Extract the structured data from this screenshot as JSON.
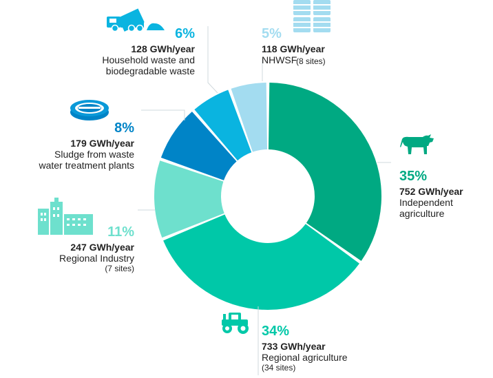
{
  "chart_data": {
    "type": "donut",
    "title": "",
    "unit": "GWh/year",
    "slices": [
      {
        "key": "independent",
        "percent": "35%",
        "value": 752,
        "value_label": "752 GWh/year",
        "label_lines": [
          "Independent",
          "agriculture"
        ],
        "sub": "",
        "color": "#00a982",
        "icon": "cow-icon"
      },
      {
        "key": "regional_agri",
        "percent": "34%",
        "value": 733,
        "value_label": "733 GWh/year",
        "label_lines": [
          "Regional agriculture"
        ],
        "sub": "(34 sites)",
        "color": "#00c8a8",
        "icon": "tractor-icon"
      },
      {
        "key": "industry",
        "percent": "11%",
        "value": 247,
        "value_label": "247 GWh/year",
        "label_lines": [
          "Regional Industry"
        ],
        "sub": "(7 sites)",
        "color": "#6ee0cd",
        "icon": "factory-icon"
      },
      {
        "key": "sludge",
        "percent": "8%",
        "value": 179,
        "value_label": "179 GWh/year",
        "label_lines": [
          "Sludge from waste",
          "water treatment plants"
        ],
        "sub": "",
        "color": "#0084c7",
        "icon": "water-treatment-icon"
      },
      {
        "key": "household",
        "percent": "6%",
        "value": 128,
        "value_label": "128 GWh/year",
        "label_lines": [
          "Household waste and",
          "biodegradable waste"
        ],
        "sub": "",
        "color": "#0ab4e0",
        "icon": "garbage-truck-icon"
      },
      {
        "key": "nhwsf",
        "percent": "5%",
        "value": 118,
        "value_label": "118 GWh/year",
        "label_lines": [
          "NHWSF"
        ],
        "sub": "(8 sites)",
        "color": "#a3dcf0",
        "icon": "barrels-icon"
      }
    ]
  }
}
